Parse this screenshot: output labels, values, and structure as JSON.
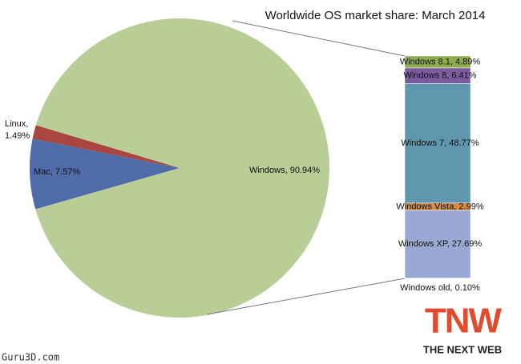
{
  "chart_data": {
    "type": "pie-of-bar",
    "title": "Worldwide OS market share: March 2014",
    "values": [
      90.94,
      7.57,
      1.49
    ],
    "value_labels": [
      "Windows, 90.94%",
      "Mac, 7.57%",
      "Linux, 1.49%"
    ],
    "colors": [
      "#b9cd96",
      "#4f6ba8",
      "#a8463f"
    ],
    "breakdown": {
      "values": [
        4.89,
        6.41,
        48.77,
        2.99,
        27.69,
        0.1
      ],
      "value_labels": [
        "Windows 8.1, 4.89%",
        "Windows 8, 6.41%",
        "Windows 7, 48.77%",
        "Windows Vista, 2.99%",
        "Windows XP, 27.69%",
        "Windows old, 0.10%"
      ],
      "colors": [
        "#8fac4f",
        "#7a5c9e",
        "#5f97ae",
        "#d78a45",
        "#9aa9d4",
        "#6d8cc0"
      ]
    }
  },
  "watermark": "Guru3D.com",
  "logo": {
    "mark": "TNW",
    "tagline": "THE NEXT WEB"
  }
}
